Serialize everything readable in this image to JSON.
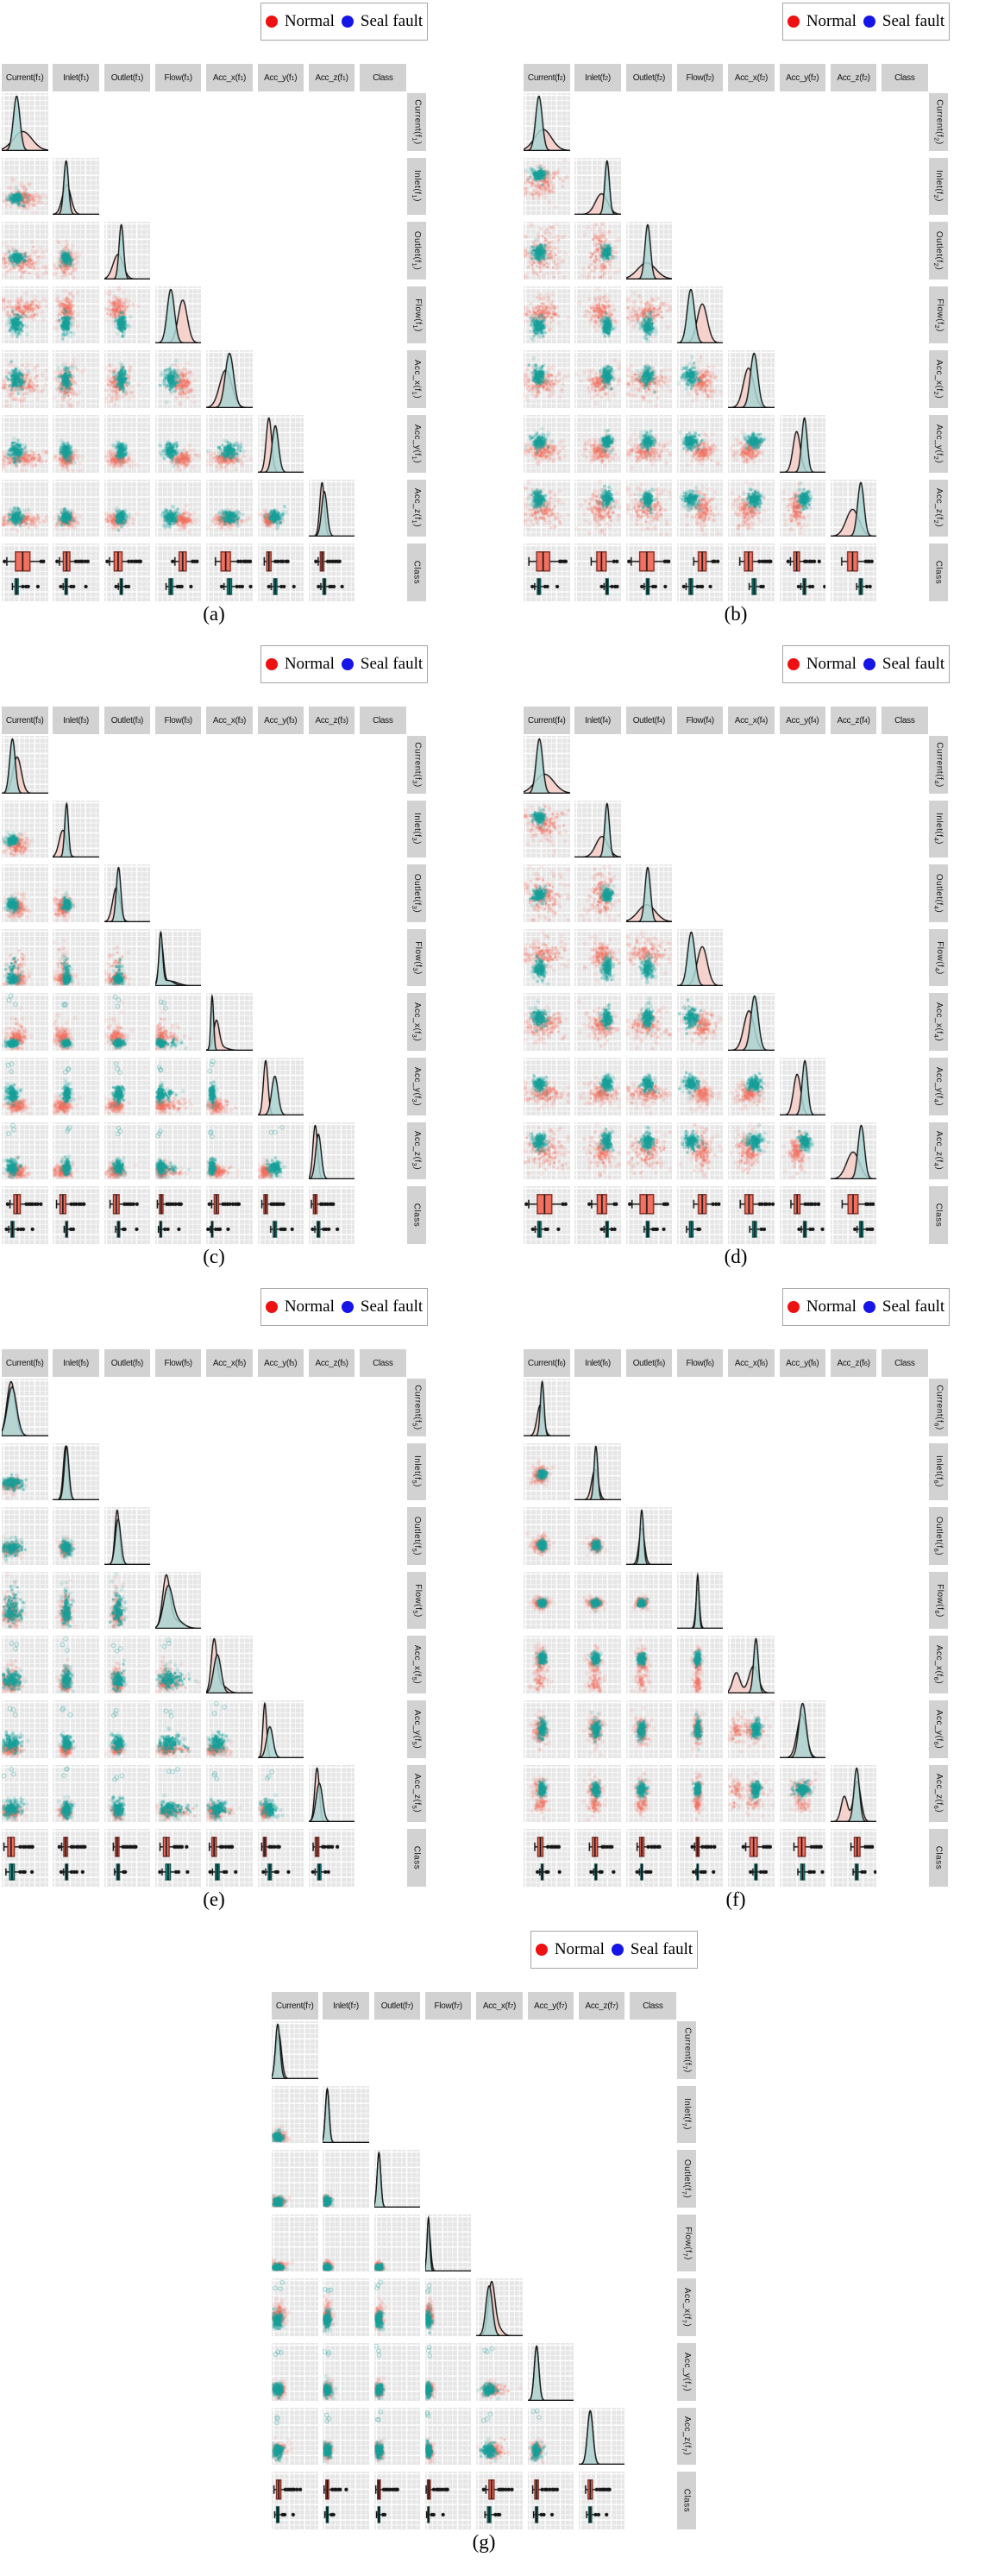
{
  "figure": {
    "legend": {
      "items": [
        {
          "label": "Normal",
          "color": "#ee1111"
        },
        {
          "label": "Seal fault",
          "color": "#1515e6"
        }
      ]
    },
    "class_header": "Class",
    "colors": {
      "normal_point": "#f2705f",
      "fault_point": "#17a09a",
      "normal_density_fill": "#f7cdc7",
      "fault_density_fill": "#a9d5d2",
      "cell_bg": "#e6e6e6",
      "grid_line": "#ffffff",
      "header_bg": "#d2d2d2",
      "box_red_stroke": "#7c2d25",
      "box_teal_stroke": "#0b514d",
      "ink": "#141414"
    }
  },
  "chart_data": {
    "type": "scatter",
    "description": "Seven lower-triangular scatter-plot matrices (pairs plots) comparing Normal vs Seal fault classes across pump features; diagonals show kernel density curves, bottom row shows per-class boxplots. Values are normalized 0-1 positions read from the figure; each marginal is a list of [mean, sd, weight] modes.",
    "classes": [
      "Normal",
      "Seal fault"
    ],
    "variables": [
      "Current",
      "Inlet",
      "Outlet",
      "Flow",
      "Acc_x",
      "Acc_y",
      "Acc_z"
    ],
    "class_column": "Class",
    "legend_position": "top-right of each panel",
    "grid": true,
    "axis_ticks": "none (unlabeled normalized axes)",
    "panels": [
      {
        "caption": "(a)",
        "subscript": "1",
        "feature_set": "f1",
        "sparse_top_outliers": false,
        "normal": [
          [
            [
              0.45,
              0.2,
              1
            ]
          ],
          [
            [
              0.3,
              0.09,
              1
            ]
          ],
          [
            [
              0.3,
              0.11,
              1
            ]
          ],
          [
            [
              0.6,
              0.1,
              1
            ]
          ],
          [
            [
              0.42,
              0.13,
              1
            ]
          ],
          [
            [
              0.24,
              0.06,
              1
            ]
          ],
          [
            [
              0.29,
              0.05,
              1
            ]
          ]
        ],
        "seal": [
          [
            [
              0.32,
              0.07,
              1
            ]
          ],
          [
            [
              0.29,
              0.05,
              1
            ]
          ],
          [
            [
              0.37,
              0.05,
              1
            ]
          ],
          [
            [
              0.34,
              0.08,
              1
            ]
          ],
          [
            [
              0.5,
              0.09,
              1
            ]
          ],
          [
            [
              0.38,
              0.07,
              1
            ]
          ],
          [
            [
              0.34,
              0.06,
              1
            ]
          ]
        ]
      },
      {
        "caption": "(b)",
        "subscript": "2",
        "feature_set": "f2",
        "sparse_top_outliers": false,
        "normal": [
          [
            [
              0.42,
              0.18,
              1
            ]
          ],
          [
            [
              0.58,
              0.13,
              1
            ]
          ],
          [
            [
              0.45,
              0.2,
              1
            ]
          ],
          [
            [
              0.55,
              0.11,
              1
            ]
          ],
          [
            [
              0.44,
              0.11,
              1
            ]
          ],
          [
            [
              0.37,
              0.08,
              1
            ]
          ],
          [
            [
              0.48,
              0.14,
              1
            ]
          ]
        ],
        "seal": [
          [
            [
              0.33,
              0.07,
              1
            ]
          ],
          [
            [
              0.7,
              0.05,
              1
            ]
          ],
          [
            [
              0.47,
              0.06,
              1
            ]
          ],
          [
            [
              0.3,
              0.08,
              1
            ]
          ],
          [
            [
              0.56,
              0.08,
              1
            ]
          ],
          [
            [
              0.54,
              0.06,
              1
            ]
          ],
          [
            [
              0.66,
              0.07,
              1
            ]
          ]
        ]
      },
      {
        "caption": "(c)",
        "subscript": "3",
        "feature_set": "f3",
        "sparse_top_outliers": true,
        "normal": [
          [
            [
              0.33,
              0.09,
              1
            ]
          ],
          [
            [
              0.22,
              0.08,
              1
            ]
          ],
          [
            [
              0.26,
              0.08,
              1
            ]
          ],
          [
            [
              0.13,
              0.05,
              1
            ],
            [
              0.33,
              0.16,
              0.35
            ]
          ],
          [
            [
              0.22,
              0.06,
              1
            ],
            [
              0.3,
              0.14,
              0.3
            ]
          ],
          [
            [
              0.17,
              0.05,
              1
            ]
          ],
          [
            [
              0.14,
              0.05,
              1
            ]
          ]
        ],
        "seal": [
          [
            [
              0.23,
              0.06,
              1
            ]
          ],
          [
            [
              0.3,
              0.04,
              1
            ]
          ],
          [
            [
              0.31,
              0.05,
              1
            ]
          ],
          [
            [
              0.12,
              0.04,
              1
            ],
            [
              0.28,
              0.12,
              0.3
            ]
          ],
          [
            [
              0.13,
              0.03,
              1
            ]
          ],
          [
            [
              0.37,
              0.07,
              1
            ]
          ],
          [
            [
              0.21,
              0.06,
              1
            ]
          ]
        ]
      },
      {
        "caption": "(d)",
        "subscript": "4",
        "feature_set": "f4",
        "sparse_top_outliers": false,
        "normal": [
          [
            [
              0.45,
              0.2,
              1
            ]
          ],
          [
            [
              0.59,
              0.13,
              1
            ]
          ],
          [
            [
              0.45,
              0.19,
              1
            ]
          ],
          [
            [
              0.55,
              0.11,
              1
            ]
          ],
          [
            [
              0.45,
              0.11,
              1
            ]
          ],
          [
            [
              0.38,
              0.08,
              1
            ]
          ],
          [
            [
              0.49,
              0.14,
              1
            ]
          ]
        ],
        "seal": [
          [
            [
              0.34,
              0.07,
              1
            ]
          ],
          [
            [
              0.7,
              0.05,
              1
            ]
          ],
          [
            [
              0.47,
              0.06,
              1
            ]
          ],
          [
            [
              0.31,
              0.08,
              1
            ]
          ],
          [
            [
              0.57,
              0.08,
              1
            ]
          ],
          [
            [
              0.55,
              0.06,
              1
            ]
          ],
          [
            [
              0.67,
              0.07,
              1
            ]
          ]
        ]
      },
      {
        "caption": "(e)",
        "subscript": "5",
        "feature_set": "f5",
        "sparse_top_outliers": true,
        "normal": [
          [
            [
              0.2,
              0.09,
              1
            ]
          ],
          [
            [
              0.28,
              0.05,
              1
            ]
          ],
          [
            [
              0.28,
              0.05,
              1
            ]
          ],
          [
            [
              0.24,
              0.08,
              1
            ],
            [
              0.45,
              0.16,
              0.3
            ]
          ],
          [
            [
              0.17,
              0.06,
              1
            ],
            [
              0.33,
              0.12,
              0.3
            ]
          ],
          [
            [
              0.15,
              0.04,
              1
            ]
          ],
          [
            [
              0.18,
              0.05,
              1
            ]
          ]
        ],
        "seal": [
          [
            [
              0.22,
              0.1,
              1
            ]
          ],
          [
            [
              0.3,
              0.05,
              1
            ]
          ],
          [
            [
              0.3,
              0.06,
              1
            ]
          ],
          [
            [
              0.28,
              0.1,
              1
            ],
            [
              0.48,
              0.14,
              0.25
            ]
          ],
          [
            [
              0.24,
              0.08,
              1
            ]
          ],
          [
            [
              0.26,
              0.07,
              1
            ]
          ],
          [
            [
              0.23,
              0.07,
              1
            ]
          ]
        ]
      },
      {
        "caption": "(f)",
        "subscript": "6",
        "feature_set": "f6",
        "sparse_top_outliers": false,
        "normal": [
          [
            [
              0.36,
              0.07,
              1
            ]
          ],
          [
            [
              0.44,
              0.07,
              1
            ]
          ],
          [
            [
              0.34,
              0.06,
              1
            ]
          ],
          [
            [
              0.45,
              0.04,
              1
            ]
          ],
          [
            [
              0.55,
              0.1,
              1
            ],
            [
              0.18,
              0.08,
              0.6
            ]
          ],
          [
            [
              0.48,
              0.1,
              1
            ]
          ],
          [
            [
              0.58,
              0.08,
              1
            ],
            [
              0.3,
              0.07,
              0.55
            ]
          ]
        ],
        "seal": [
          [
            [
              0.4,
              0.04,
              1
            ]
          ],
          [
            [
              0.46,
              0.04,
              1
            ]
          ],
          [
            [
              0.34,
              0.04,
              1
            ]
          ],
          [
            [
              0.45,
              0.03,
              1
            ]
          ],
          [
            [
              0.6,
              0.05,
              1
            ]
          ],
          [
            [
              0.5,
              0.08,
              1
            ]
          ],
          [
            [
              0.57,
              0.06,
              1
            ]
          ]
        ]
      },
      {
        "caption": "(g)",
        "subscript": "7",
        "feature_set": "f7",
        "sparse_top_outliers": true,
        "normal": [
          [
            [
              0.15,
              0.06,
              1
            ]
          ],
          [
            [
              0.1,
              0.04,
              1
            ]
          ],
          [
            [
              0.1,
              0.04,
              1
            ]
          ],
          [
            [
              0.08,
              0.04,
              1
            ]
          ],
          [
            [
              0.33,
              0.07,
              1
            ],
            [
              0.45,
              0.1,
              0.25
            ]
          ],
          [
            [
              0.19,
              0.05,
              1
            ]
          ],
          [
            [
              0.25,
              0.06,
              1
            ]
          ]
        ],
        "seal": [
          [
            [
              0.13,
              0.05,
              1
            ]
          ],
          [
            [
              0.1,
              0.04,
              1
            ]
          ],
          [
            [
              0.1,
              0.04,
              1
            ]
          ],
          [
            [
              0.07,
              0.03,
              1
            ]
          ],
          [
            [
              0.28,
              0.07,
              1
            ]
          ],
          [
            [
              0.19,
              0.05,
              1
            ]
          ],
          [
            [
              0.25,
              0.06,
              1
            ]
          ]
        ]
      }
    ]
  }
}
